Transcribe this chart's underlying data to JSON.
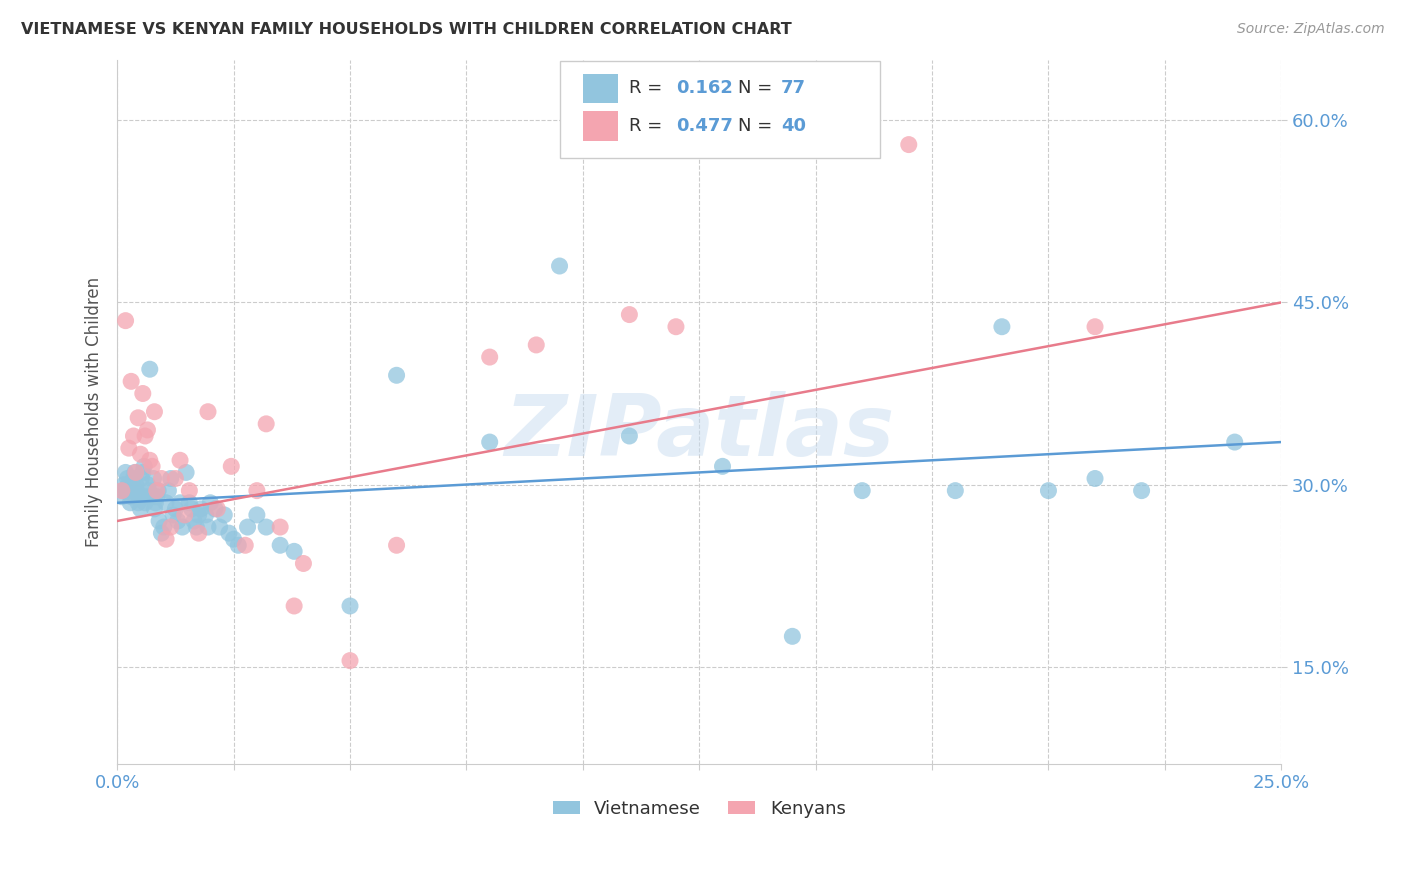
{
  "title": "VIETNAMESE VS KENYAN FAMILY HOUSEHOLDS WITH CHILDREN CORRELATION CHART",
  "source": "Source: ZipAtlas.com",
  "ylabel": "Family Households with Children",
  "ytick_labels": [
    "15.0%",
    "30.0%",
    "45.0%",
    "60.0%"
  ],
  "ytick_values": [
    0.15,
    0.3,
    0.45,
    0.6
  ],
  "xlim": [
    0.0,
    0.25
  ],
  "ylim": [
    0.07,
    0.65
  ],
  "viet_color": "#92C5DE",
  "kenyan_color": "#F4A5B0",
  "viet_line_color": "#5B9BD5",
  "kenyan_line_color": "#E87B8B",
  "watermark": "ZIPatlas",
  "background_color": "#FFFFFF",
  "grid_color": "#CCCCCC",
  "title_color": "#333333",
  "source_color": "#999999",
  "axis_label_color": "#5B9BD5",
  "viet_x": [
    0.001,
    0.0012,
    0.0015,
    0.0018,
    0.002,
    0.0022,
    0.0025,
    0.0028,
    0.003,
    0.0032,
    0.0035,
    0.0038,
    0.004,
    0.0042,
    0.0045,
    0.0048,
    0.005,
    0.0052,
    0.0055,
    0.0058,
    0.006,
    0.0062,
    0.0065,
    0.0068,
    0.007,
    0.0075,
    0.0078,
    0.008,
    0.0082,
    0.0085,
    0.0088,
    0.009,
    0.0095,
    0.01,
    0.0105,
    0.011,
    0.0115,
    0.012,
    0.0125,
    0.013,
    0.0135,
    0.014,
    0.0148,
    0.0155,
    0.016,
    0.0165,
    0.017,
    0.0175,
    0.018,
    0.019,
    0.0195,
    0.02,
    0.021,
    0.022,
    0.023,
    0.024,
    0.025,
    0.026,
    0.028,
    0.03,
    0.032,
    0.035,
    0.038,
    0.05,
    0.06,
    0.08,
    0.095,
    0.11,
    0.13,
    0.145,
    0.16,
    0.18,
    0.19,
    0.2,
    0.21,
    0.22,
    0.24
  ],
  "viet_y": [
    0.29,
    0.295,
    0.3,
    0.31,
    0.295,
    0.305,
    0.3,
    0.285,
    0.29,
    0.295,
    0.305,
    0.31,
    0.3,
    0.295,
    0.285,
    0.29,
    0.28,
    0.305,
    0.31,
    0.315,
    0.285,
    0.29,
    0.3,
    0.295,
    0.395,
    0.29,
    0.305,
    0.28,
    0.285,
    0.29,
    0.295,
    0.27,
    0.26,
    0.265,
    0.285,
    0.295,
    0.305,
    0.275,
    0.28,
    0.27,
    0.285,
    0.265,
    0.31,
    0.285,
    0.28,
    0.27,
    0.265,
    0.275,
    0.28,
    0.275,
    0.265,
    0.285,
    0.28,
    0.265,
    0.275,
    0.26,
    0.255,
    0.25,
    0.265,
    0.275,
    0.265,
    0.25,
    0.245,
    0.2,
    0.39,
    0.335,
    0.48,
    0.34,
    0.315,
    0.175,
    0.295,
    0.295,
    0.43,
    0.295,
    0.305,
    0.295,
    0.335
  ],
  "kenyan_x": [
    0.001,
    0.0018,
    0.0025,
    0.003,
    0.0035,
    0.004,
    0.0045,
    0.005,
    0.0055,
    0.006,
    0.0065,
    0.007,
    0.0075,
    0.008,
    0.0085,
    0.0095,
    0.0105,
    0.0115,
    0.0125,
    0.0135,
    0.0145,
    0.0155,
    0.0175,
    0.0195,
    0.0215,
    0.0245,
    0.0275,
    0.03,
    0.032,
    0.035,
    0.038,
    0.04,
    0.05,
    0.06,
    0.08,
    0.09,
    0.11,
    0.12,
    0.17,
    0.21
  ],
  "kenyan_y": [
    0.295,
    0.435,
    0.33,
    0.385,
    0.34,
    0.31,
    0.355,
    0.325,
    0.375,
    0.34,
    0.345,
    0.32,
    0.315,
    0.36,
    0.295,
    0.305,
    0.255,
    0.265,
    0.305,
    0.32,
    0.275,
    0.295,
    0.26,
    0.36,
    0.28,
    0.315,
    0.25,
    0.295,
    0.35,
    0.265,
    0.2,
    0.235,
    0.155,
    0.25,
    0.405,
    0.415,
    0.44,
    0.43,
    0.58,
    0.43
  ],
  "viet_line_x0": 0.0,
  "viet_line_y0": 0.285,
  "viet_line_x1": 0.25,
  "viet_line_y1": 0.335,
  "kenyan_line_x0": 0.0,
  "kenyan_line_y0": 0.27,
  "kenyan_line_x1": 0.25,
  "kenyan_line_y1": 0.45
}
